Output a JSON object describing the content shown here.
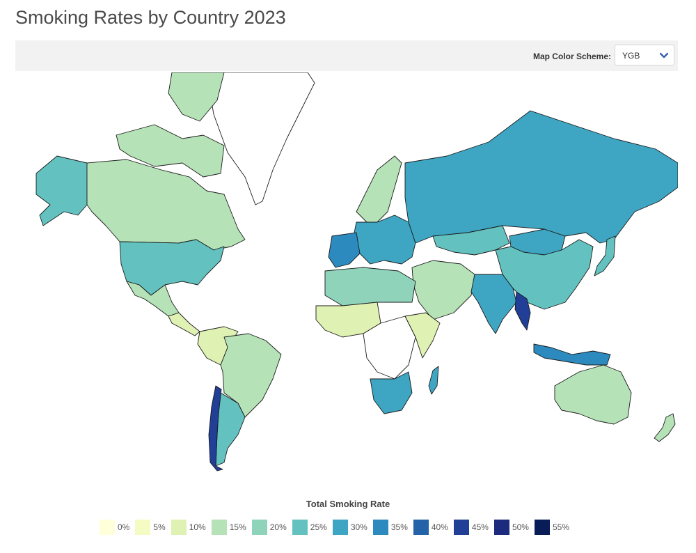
{
  "title": "Smoking Rates by Country 2023",
  "toolbar": {
    "scheme_label": "Map Color Scheme:",
    "scheme_value": "YGB",
    "chevron_icon": "chevron-down-icon"
  },
  "legend": {
    "title": "Total Smoking Rate",
    "items": [
      {
        "label": "0%",
        "color": "#ffffd9"
      },
      {
        "label": "5%",
        "color": "#f4fbc3"
      },
      {
        "label": "10%",
        "color": "#dff2b3"
      },
      {
        "label": "15%",
        "color": "#b6e2b7"
      },
      {
        "label": "20%",
        "color": "#8fd3bb"
      },
      {
        "label": "25%",
        "color": "#63c2bf"
      },
      {
        "label": "30%",
        "color": "#3ea6c3"
      },
      {
        "label": "35%",
        "color": "#2c8abe"
      },
      {
        "label": "40%",
        "color": "#2563a8"
      },
      {
        "label": "45%",
        "color": "#213f97"
      },
      {
        "label": "50%",
        "color": "#1c2b7d"
      },
      {
        "label": "55%",
        "color": "#081d58"
      }
    ]
  },
  "countries": {
    "greenland": "#ffffff",
    "canada": "#b6e2b7",
    "arctic_islands": "#b6e2b7",
    "alaska": "#63c2bf",
    "usa": "#63c2bf",
    "mexico": "#b6e2b7",
    "central_america": "#dff2b3",
    "colombia": "#dff2b3",
    "brazil": "#b6e2b7",
    "argentina": "#63c2bf",
    "chile": "#213f97",
    "russia": "#3ea6c3",
    "china": "#63c2bf",
    "india": "#3ea6c3",
    "myanmar": "#213f97",
    "europe": "#3ea6c3",
    "spain_france": "#2c8abe",
    "scandinavia": "#b6e2b7",
    "north_africa": "#8fd3bb",
    "west_africa": "#dff2b3",
    "central_africa": "#ffffff",
    "east_africa": "#dff2b3",
    "south_africa": "#3ea6c3",
    "madagascar": "#3ea6c3",
    "middle_east": "#b6e2b7",
    "indonesia": "#2c8abe",
    "australia": "#b6e2b7",
    "new_zealand": "#b6e2b7",
    "japan": "#63c2bf",
    "mongolia": "#3ea6c3",
    "kazakhstan": "#63c2bf"
  }
}
